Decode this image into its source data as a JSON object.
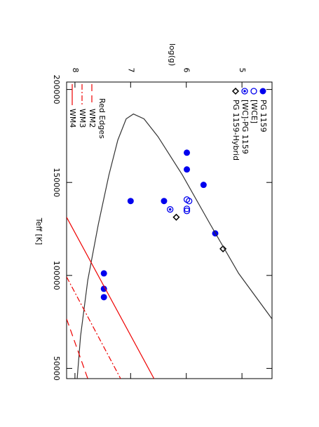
{
  "chart_data": {
    "type": "scatter",
    "x_label": "Teff [K]",
    "y_label": "log(g)",
    "xlim": [
      204000,
      44500
    ],
    "ylim": [
      8.15,
      4.46
    ],
    "xticks": [
      200000,
      150000,
      100000,
      50000
    ],
    "yticks": [
      5,
      6,
      7,
      8
    ],
    "legend_title": "Red Edges",
    "series": [
      {
        "name": "PG 1159",
        "color": "#0000ee",
        "marker": "filled-circle",
        "x": [
          166000,
          157000,
          148700,
          140000,
          140000,
          122600,
          101100,
          92800,
          88300
        ],
        "y": [
          5.99,
          5.99,
          5.69,
          6.4,
          7.0,
          5.48,
          7.48,
          7.48,
          7.48
        ]
      },
      {
        "name": "[WCE]",
        "color": "#0000ee",
        "marker": "open-circle",
        "x": [
          140800,
          140000,
          135800,
          134700
        ],
        "y": [
          5.99,
          5.95,
          5.99,
          5.99
        ]
      },
      {
        "name": "[WC]-PG 1159",
        "color": "#0000ee",
        "marker": "bullseye",
        "x": [
          135500
        ],
        "y": [
          6.29
        ]
      },
      {
        "name": "PG 1159-Hybrid",
        "color": "#000000",
        "marker": "diamond",
        "x": [
          131300,
          114300
        ],
        "y": [
          6.18,
          5.34
        ]
      },
      {
        "color": "#333333",
        "marker": "line",
        "dash": "none",
        "x": [
          44500,
          67200,
          97400,
          127500,
          154000,
          172800,
          184200,
          186800,
          184200,
          174700,
          154000,
          127500,
          101100,
          76600
        ],
        "y": [
          7.96,
          7.9,
          7.77,
          7.58,
          7.39,
          7.23,
          7.08,
          6.95,
          6.76,
          6.51,
          6.07,
          5.57,
          5.06,
          4.46
        ]
      },
      {
        "name": "WM2",
        "color": "#ee0000",
        "marker": "line",
        "dash": "10 6",
        "x": [
          76600,
          44500
        ],
        "y": [
          8.15,
          7.77
        ]
      },
      {
        "name": "WM3",
        "color": "#ee0000",
        "marker": "line",
        "dash": "8 3 2 3",
        "x": [
          99200,
          44500
        ],
        "y": [
          8.15,
          7.18
        ]
      },
      {
        "name": "WM4",
        "color": "#ee0000",
        "marker": "line",
        "dash": "none",
        "x": [
          131300,
          44500
        ],
        "y": [
          8.15,
          6.58
        ]
      }
    ]
  }
}
